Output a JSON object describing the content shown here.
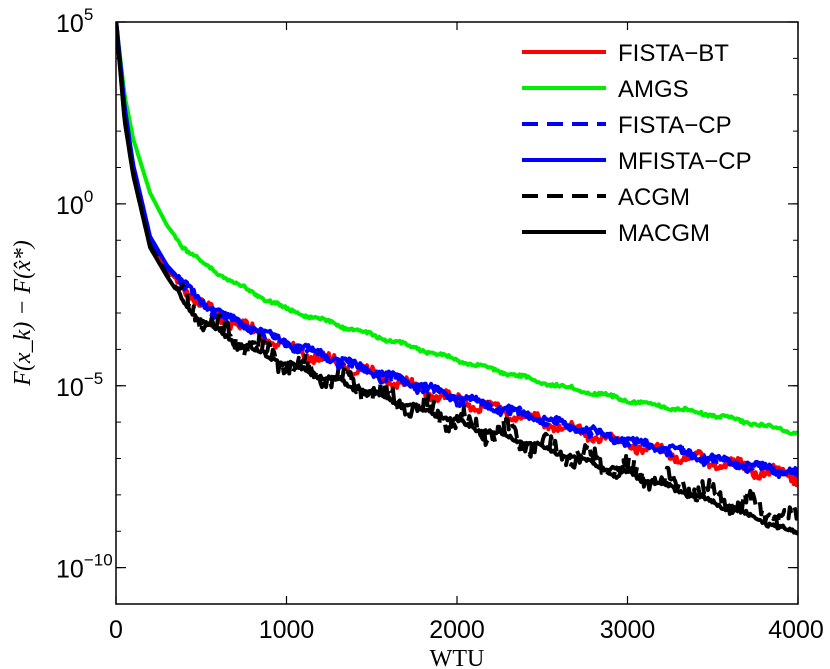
{
  "chart_data": {
    "type": "line",
    "title": "",
    "xlabel": "WTU",
    "ylabel": "F(x_k) − F(x̂*)",
    "xlim": [
      0,
      4000
    ],
    "ylim_exponent": [
      -11,
      5
    ],
    "y_scale": "log",
    "grid": false,
    "legend_position": "top-right",
    "x_ticks": [
      0,
      1000,
      2000,
      3000,
      4000
    ],
    "x_tick_labels": [
      "0",
      "1000",
      "2000",
      "3000",
      "4000"
    ],
    "y_ticks_exponent": [
      5,
      0,
      -5,
      -10
    ],
    "y_tick_labels": [
      {
        "base": "10",
        "exp": "5"
      },
      {
        "base": "10",
        "exp": "0"
      },
      {
        "base": "10",
        "exp": "−5"
      },
      {
        "base": "10",
        "exp": "−10"
      }
    ],
    "series": [
      {
        "name": "FISTA−BT",
        "color": "#ff0000",
        "dash": "solid",
        "x": [
          0,
          50,
          100,
          200,
          300,
          400,
          500,
          700,
          1000,
          1500,
          2000,
          2500,
          3000,
          3500,
          4000
        ],
        "log10y": [
          5,
          2.5,
          1.0,
          -1.0,
          -1.8,
          -2.3,
          -2.8,
          -3.3,
          -3.9,
          -4.7,
          -5.4,
          -6.0,
          -6.6,
          -7.1,
          -7.5
        ]
      },
      {
        "name": "AMGS",
        "color": "#00ee00",
        "dash": "solid",
        "x": [
          0,
          50,
          100,
          200,
          300,
          400,
          500,
          700,
          1000,
          1500,
          2000,
          2500,
          3000,
          3500,
          4000
        ],
        "log10y": [
          5,
          3.0,
          1.8,
          0.3,
          -0.6,
          -1.2,
          -1.6,
          -2.2,
          -2.9,
          -3.6,
          -4.3,
          -4.9,
          -5.4,
          -5.8,
          -6.3
        ]
      },
      {
        "name": "FISTA−CP",
        "color": "#0000ff",
        "dash": "dashed",
        "x": [
          0,
          50,
          100,
          200,
          300,
          400,
          500,
          700,
          1000,
          1500,
          2000,
          2500,
          3000,
          3500,
          4000
        ],
        "log10y": [
          5,
          2.6,
          1.0,
          -1.0,
          -1.8,
          -2.3,
          -2.8,
          -3.3,
          -3.9,
          -4.7,
          -5.4,
          -6.0,
          -6.6,
          -7.1,
          -7.5
        ]
      },
      {
        "name": "MFISTA−CP",
        "color": "#0000ff",
        "dash": "solid",
        "x": [
          0,
          50,
          100,
          200,
          300,
          400,
          500,
          700,
          1000,
          1500,
          2000,
          2500,
          3000,
          3500,
          4000
        ],
        "log10y": [
          5,
          2.6,
          1.0,
          -1.0,
          -1.8,
          -2.3,
          -2.8,
          -3.3,
          -3.9,
          -4.7,
          -5.4,
          -6.0,
          -6.6,
          -7.1,
          -7.5
        ]
      },
      {
        "name": "ACGM",
        "color": "#000000",
        "dash": "dashed",
        "x": [
          0,
          50,
          100,
          200,
          300,
          400,
          500,
          700,
          1000,
          1500,
          2000,
          2500,
          3000,
          3500,
          4000
        ],
        "log10y": [
          5,
          2.3,
          0.8,
          -1.2,
          -2.0,
          -2.7,
          -3.2,
          -3.8,
          -4.4,
          -5.2,
          -6.0,
          -6.7,
          -7.4,
          -8.0,
          -8.8
        ]
      },
      {
        "name": "MACGM",
        "color": "#000000",
        "dash": "solid",
        "x": [
          0,
          50,
          100,
          200,
          300,
          400,
          500,
          700,
          1000,
          1500,
          2000,
          2500,
          3000,
          3500,
          4000
        ],
        "log10y": [
          5,
          2.3,
          0.8,
          -1.2,
          -2.0,
          -2.7,
          -3.2,
          -3.8,
          -4.4,
          -5.2,
          -6.0,
          -6.7,
          -7.4,
          -8.2,
          -9.1
        ]
      }
    ]
  }
}
